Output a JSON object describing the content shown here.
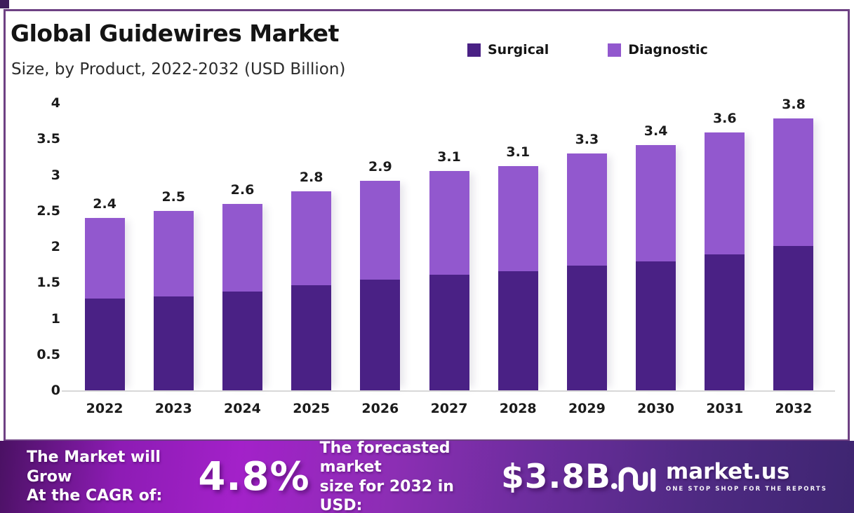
{
  "header": {
    "title": "Global Guidewires Market",
    "subtitle": "Size, by Product, 2022-2032 (USD Billion)"
  },
  "legend": [
    {
      "label": "Surgical",
      "color": "#4a2185"
    },
    {
      "label": "Diagnostic",
      "color": "#9258ce"
    }
  ],
  "chart_data": {
    "type": "bar",
    "stacked": true,
    "title": "Global Guidewires Market Size, by Product, 2022-2032 (USD Billion)",
    "categories": [
      "2022",
      "2023",
      "2024",
      "2025",
      "2026",
      "2027",
      "2028",
      "2029",
      "2030",
      "2031",
      "2032"
    ],
    "series": [
      {
        "name": "Surgical",
        "color": "#4a2185",
        "values": [
          1.28,
          1.31,
          1.38,
          1.46,
          1.54,
          1.61,
          1.66,
          1.74,
          1.8,
          1.89,
          2.01
        ]
      },
      {
        "name": "Diagnostic",
        "color": "#9258ce",
        "values": [
          1.12,
          1.19,
          1.22,
          1.31,
          1.38,
          1.44,
          1.46,
          1.56,
          1.61,
          1.7,
          1.78
        ]
      }
    ],
    "totals_labels": [
      "2.4",
      "2.5",
      "2.6",
      "2.8",
      "2.9",
      "3.1",
      "3.1",
      "3.3",
      "3.4",
      "3.6",
      "3.8"
    ],
    "yticks": [
      0,
      0.5,
      1,
      1.5,
      2,
      2.5,
      3,
      3.5,
      4
    ],
    "ylim": [
      0,
      4
    ],
    "xlabel": "",
    "ylabel": "USD Billion",
    "grid": false,
    "legend_position": "top-right"
  },
  "footer": {
    "cagr_line1": "The Market will Grow",
    "cagr_line2": "At the CAGR of:",
    "cagr_value": "4.8%",
    "forecast_line1": "The forecasted market",
    "forecast_line2": "size for 2032 in USD:",
    "forecast_value": "$3.8B",
    "brand_name": "market.us",
    "brand_tagline": "ONE STOP SHOP FOR THE REPORTS"
  }
}
